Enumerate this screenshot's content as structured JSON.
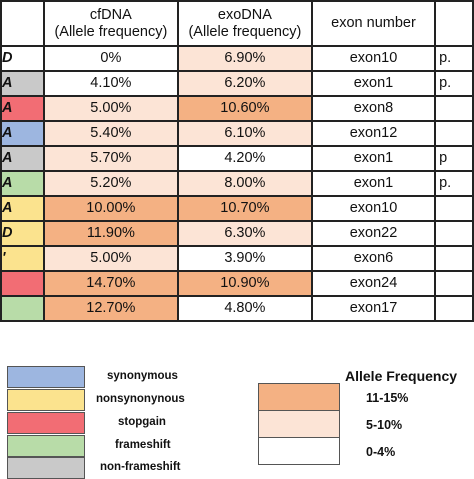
{
  "table": {
    "headers": {
      "cfdna": [
        "cfDNA",
        "(Allele frequency)"
      ],
      "exodna": [
        "exoDNA",
        "(Allele frequency)"
      ],
      "exon": "exon number"
    },
    "rows": [
      {
        "left_text": "D",
        "left_color": "#ffffff",
        "cf": "0%",
        "cf_color": "#ffffff",
        "exo": "6.90%",
        "exo_color": "#fce4d6",
        "exon": "exon10",
        "right_text": "p."
      },
      {
        "left_text": "A",
        "left_color": "#c9c9c9",
        "cf": "4.10%",
        "cf_color": "#ffffff",
        "exo": "6.20%",
        "exo_color": "#fce4d6",
        "exon": "exon1",
        "right_text": "p."
      },
      {
        "left_text": "A",
        "left_color": "#f26d74",
        "cf": "5.00%",
        "cf_color": "#fce4d6",
        "exo": "10.60%",
        "exo_color": "#f4b183",
        "exon": "exon8",
        "right_text": ""
      },
      {
        "left_text": "A",
        "left_color": "#9db6e0",
        "cf": "5.40%",
        "cf_color": "#fce4d6",
        "exo": "6.10%",
        "exo_color": "#fce4d6",
        "exon": "exon12",
        "right_text": ""
      },
      {
        "left_text": "A",
        "left_color": "#c9c9c9",
        "cf": "5.70%",
        "cf_color": "#fce4d6",
        "exo": "4.20%",
        "exo_color": "#ffffff",
        "exon": "exon1",
        "right_text": "p"
      },
      {
        "left_text": "A",
        "left_color": "#b8dca8",
        "cf": "5.20%",
        "cf_color": "#fce4d6",
        "exo": "8.00%",
        "exo_color": "#fce4d6",
        "exon": "exon1",
        "right_text": "p."
      },
      {
        "left_text": "A",
        "left_color": "#fbe38e",
        "cf": "10.00%",
        "cf_color": "#f4b183",
        "exo": "10.70%",
        "exo_color": "#f4b183",
        "exon": "exon10",
        "right_text": ""
      },
      {
        "left_text": "D",
        "left_color": "#fbe38e",
        "cf": "11.90%",
        "cf_color": "#f4b183",
        "exo": "6.30%",
        "exo_color": "#fce4d6",
        "exon": "exon22",
        "right_text": ""
      },
      {
        "left_text": "'",
        "left_color": "#fbe38e",
        "cf": "5.00%",
        "cf_color": "#fce4d6",
        "exo": "3.90%",
        "exo_color": "#ffffff",
        "exon": "exon6",
        "right_text": ""
      },
      {
        "left_text": "",
        "left_color": "#f26d74",
        "cf": "14.70%",
        "cf_color": "#f4b183",
        "exo": "10.90%",
        "exo_color": "#f4b183",
        "exon": "exon24",
        "right_text": ""
      },
      {
        "left_text": "",
        "left_color": "#b8dca8",
        "cf": "12.70%",
        "cf_color": "#f4b183",
        "exo": "4.80%",
        "exo_color": "#ffffff",
        "exon": "exon17",
        "right_text": ""
      }
    ]
  },
  "legend_variant": [
    {
      "label": "synonymous",
      "color": "#9db6e0"
    },
    {
      "label": "nonsynonynous",
      "color": "#fbe38e"
    },
    {
      "label": "stopgain",
      "color": "#f26d74"
    },
    {
      "label": "frameshift",
      "color": "#b8dca8"
    },
    {
      "label": "non-frameshift",
      "color": "#c9c9c9"
    }
  ],
  "legend_af": {
    "title": "Allele Frequency",
    "items": [
      {
        "label": "11-15%",
        "color": "#f4b183"
      },
      {
        "label": "5-10%",
        "color": "#fce4d6"
      },
      {
        "label": "0-4%",
        "color": "#ffffff"
      }
    ]
  }
}
